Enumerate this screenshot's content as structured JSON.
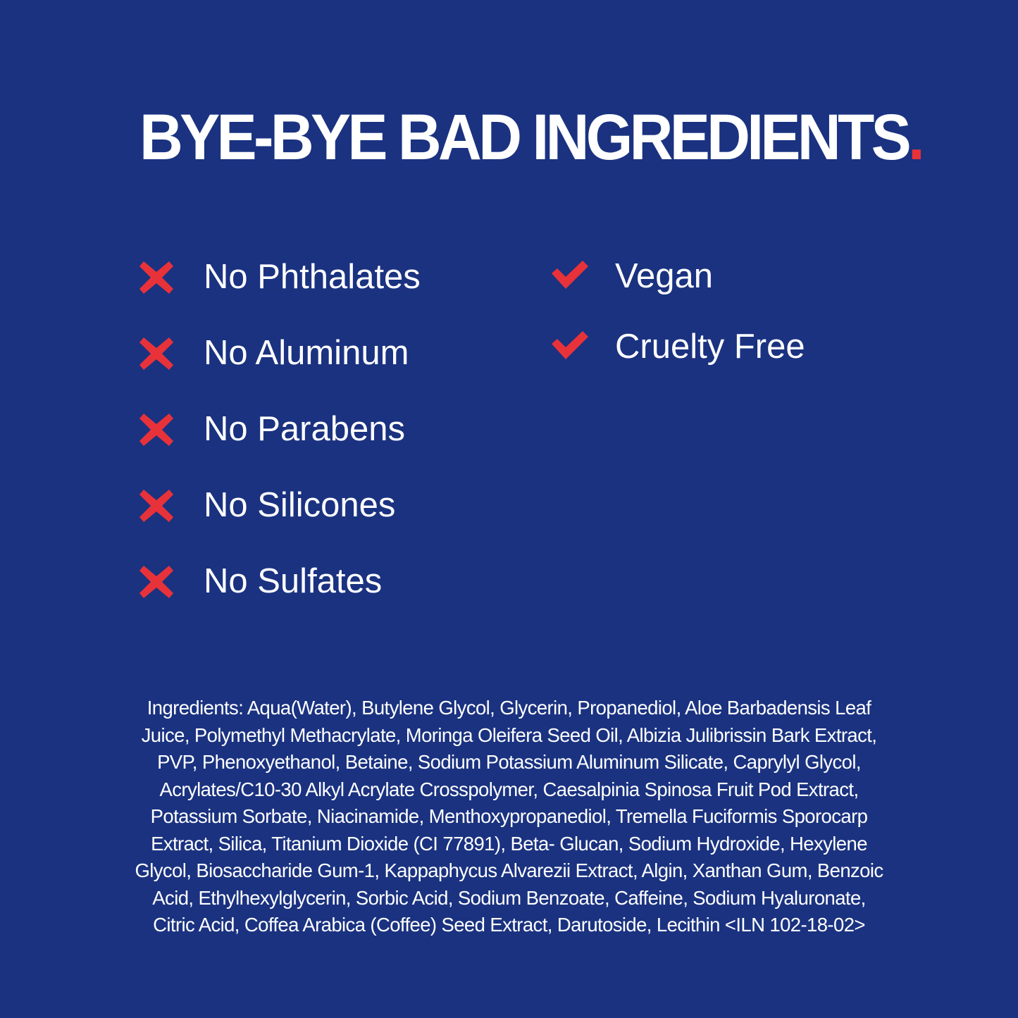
{
  "title": {
    "text": "BYE-BYE BAD INGREDIENTS",
    "dot": "."
  },
  "colors": {
    "background": "#1a3280",
    "accent": "#e8323a",
    "text": "#ffffff"
  },
  "free_from": [
    {
      "icon": "x-icon",
      "label": "No Phthalates"
    },
    {
      "icon": "x-icon",
      "label": "No Aluminum"
    },
    {
      "icon": "x-icon",
      "label": "No Parabens"
    },
    {
      "icon": "x-icon",
      "label": "No Silicones"
    },
    {
      "icon": "x-icon",
      "label": "No Sulfates"
    }
  ],
  "claims": [
    {
      "icon": "check-icon",
      "label": "Vegan"
    },
    {
      "icon": "check-icon",
      "label": "Cruelty Free"
    }
  ],
  "ingredients_lines": [
    "Ingredients: Aqua(Water), Butylene Glycol, Glycerin, Propanediol, Aloe Barbadensis Leaf",
    "Juice, Polymethyl Methacrylate, Moringa Oleifera Seed Oil, Albizia Julibrissin Bark Extract,",
    "PVP, Phenoxyethanol, Betaine, Sodium Potassium Aluminum Silicate, Caprylyl Glycol,",
    "Acrylates/C10-30 Alkyl Acrylate Crosspolymer, Caesalpinia Spinosa Fruit Pod Extract,",
    "Potassium Sorbate, Niacinamide, Menthoxypropanediol, Tremella Fuciformis Sporocarp",
    "Extract, Silica, Titanium Dioxide (CI 77891), Beta- Glucan, Sodium Hydroxide, Hexylene",
    "Glycol, Biosaccharide Gum-1, Kappaphycus Alvarezii Extract, Algin, Xanthan Gum, Benzoic",
    "Acid, Ethylhexylglycerin, Sorbic Acid, Sodium Benzoate, Caffeine, Sodium Hyaluronate,",
    "Citric Acid, Coffea Arabica (Coffee) Seed Extract, Darutoside, Lecithin <ILN 102-18-02>"
  ]
}
